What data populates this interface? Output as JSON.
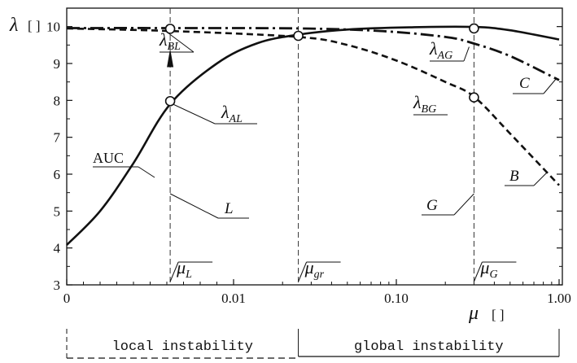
{
  "chart_data": {
    "type": "line",
    "x_axis": {
      "label": "μ",
      "unit": "[ ]",
      "scale": "segmented",
      "ticks": [
        "0",
        "0.01",
        "0.10",
        "1.00"
      ]
    },
    "y_axis": {
      "label": "λ",
      "unit": "[ ]",
      "range": [
        3,
        10.5
      ],
      "ticks": [
        "3",
        "4",
        "5",
        "6",
        "7",
        "8",
        "9",
        "10"
      ]
    },
    "series": [
      {
        "name": "AUC",
        "style": "solid",
        "points": [
          [
            0,
            4.08
          ],
          [
            0.002,
            5.0
          ],
          [
            0.004,
            6.3
          ],
          [
            0.0062,
            7.9
          ],
          [
            0.009,
            9.0
          ],
          [
            0.014,
            9.55
          ],
          [
            0.025,
            9.78
          ],
          [
            0.05,
            9.92
          ],
          [
            0.12,
            9.98
          ],
          [
            0.3,
            9.99
          ],
          [
            0.5,
            9.9
          ],
          [
            1.0,
            9.65
          ]
        ]
      },
      {
        "name": "C",
        "style": "dash-dot",
        "points": [
          [
            0,
            9.96
          ],
          [
            0.0062,
            9.96
          ],
          [
            0.025,
            9.95
          ],
          [
            0.08,
            9.88
          ],
          [
            0.2,
            9.72
          ],
          [
            0.3,
            9.54
          ],
          [
            0.5,
            9.2
          ],
          [
            1.0,
            8.55
          ]
        ]
      },
      {
        "name": "B",
        "style": "dashed",
        "points": [
          [
            0,
            9.95
          ],
          [
            0.0062,
            9.88
          ],
          [
            0.025,
            9.72
          ],
          [
            0.05,
            9.5
          ],
          [
            0.1,
            9.08
          ],
          [
            0.2,
            8.5
          ],
          [
            0.3,
            8.1
          ],
          [
            0.5,
            7.1
          ],
          [
            1.0,
            5.7
          ]
        ]
      }
    ],
    "markers": [
      {
        "name": "λBL",
        "label": "λ",
        "sub": "BL",
        "x": 0.0062,
        "y": 9.94
      },
      {
        "name": "λAL",
        "label": "λ",
        "sub": "AL",
        "x": 0.0062,
        "y": 7.98
      },
      {
        "name": "μgr point",
        "x": 0.025,
        "y": 9.75
      },
      {
        "name": "λAG",
        "label": "λ",
        "sub": "AG",
        "x": 0.3,
        "y": 9.95
      },
      {
        "name": "λBG",
        "label": "λ",
        "sub": "BG",
        "x": 0.3,
        "y": 8.08
      }
    ],
    "vertical_lines": [
      {
        "name": "L",
        "label": "μ",
        "sub": "L",
        "x": 0.0062
      },
      {
        "name": "gr",
        "label": "μ",
        "sub": "gr",
        "x": 0.025
      },
      {
        "name": "G",
        "label": "μ",
        "sub": "G",
        "x": 0.3
      }
    ],
    "annotations": [
      {
        "text": "AUC"
      },
      {
        "text": "L"
      },
      {
        "text": "G"
      },
      {
        "text": "C"
      },
      {
        "text": "B"
      }
    ],
    "regions": [
      {
        "label": "local instability"
      },
      {
        "label": "global instability"
      }
    ]
  }
}
